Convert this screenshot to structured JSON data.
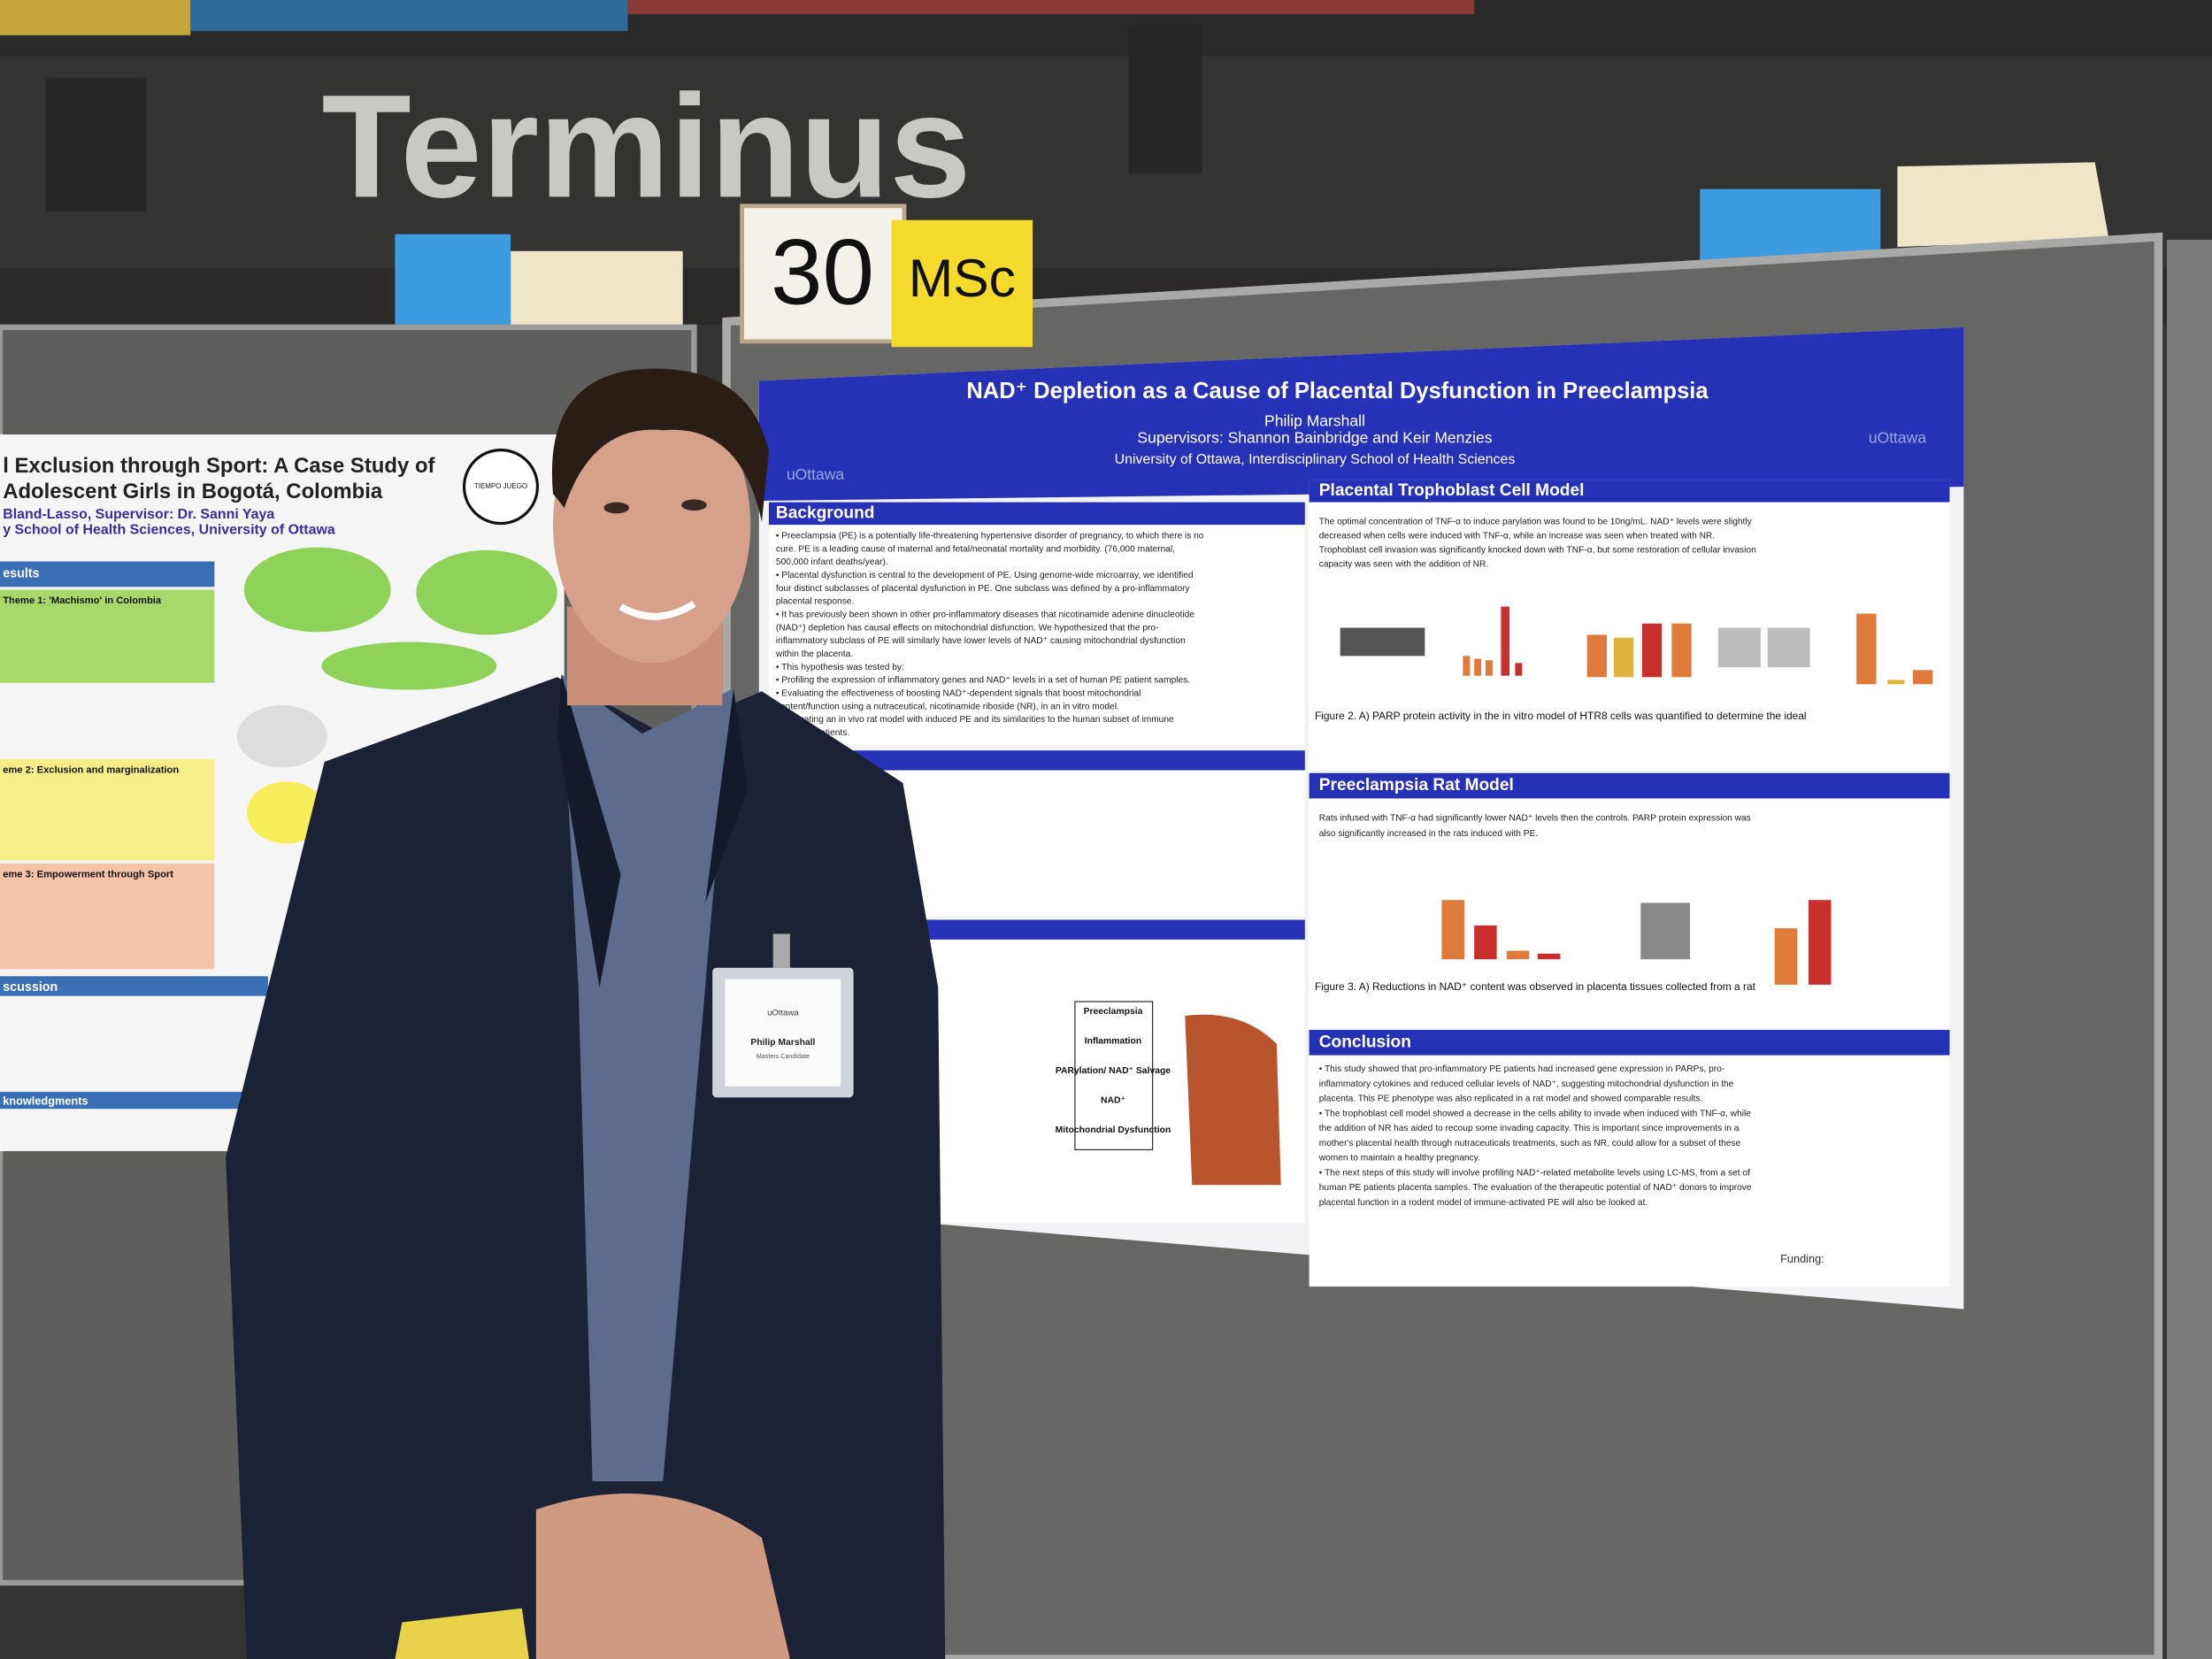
{
  "sign": {
    "venue": "Terminus",
    "number": "30",
    "degree": "MSc"
  },
  "main_poster": {
    "title": "NAD⁺ Depletion as a Cause of Placental Dysfunction in Preeclampsia",
    "author": "Philip Marshall",
    "supervisors": "Supervisors: Shannon Bainbridge and Keir Menzies",
    "affiliation": "University of Ottawa, Interdisciplinary School of Health Sciences",
    "logo": "uOttawa",
    "funding": "Funding:",
    "sections": [
      {
        "heading": "Background",
        "lines": [
          "• Preeclampsia (PE) is a potentially life-threatening hypertensive disorder of pregnancy, to which there is no",
          "  cure. PE is a leading cause of maternal and fetal/neonatal mortality and morbidity. (76,000 maternal,",
          "  500,000 infant deaths/year).",
          "• Placental dysfunction is central to the development of PE. Using genome-wide microarray, we identified",
          "  four distinct subclasses of placental dysfunction in PE. One subclass was defined by a pro-inflammatory",
          "  placental response.",
          "• It has previously been shown in other pro-inflammatory diseases that nicotinamide adenine dinucleotide",
          "  (NAD⁺) depletion has causal effects on mitochondrial disfunction. We hypothesized that the pro-",
          "  inflammatory subclass of PE will similarly have lower levels of NAD⁺ causing mitochondrial dysfunction",
          "  within the placenta.",
          "• This hypothesis was tested by:",
          "   • Profiling the expression of inflammatory genes and NAD⁺ levels in a set of human PE patient samples.",
          "   • Evaluating the effectiveness of boosting NAD⁺-dependent signals that boost mitochondrial",
          "     content/function using a nutraceutical, nicotinamide riboside (NR), in an in vitro model.",
          "   • Evaluating an in vivo rat model with induced PE and its similarities to the human subset of immune",
          "     response patients."
        ]
      },
      {
        "heading": "Placental Trophoblast Cell Model",
        "lines": [
          "The optimal concentration of TNF-α to induce parylation was found to be 10ng/mL. NAD⁺ levels were slightly",
          "decreased when cells were induced with TNF-α, while an increase was seen when treated with NR.",
          "Trophoblast cell invasion was significantly knocked down with TNF-α, but some restoration of cellular invasion",
          "capacity was seen with the addition of NR."
        ]
      },
      {
        "heading": "Preeclampsia Rat Model",
        "lines": [
          "Rats infused with TNF-α had significantly lower NAD⁺ levels then the controls. PARP protein expression was",
          "also significantly increased in the rats induced with PE."
        ]
      },
      {
        "heading": "Conclusion",
        "lines": [
          "• This study showed that pro-inflammatory PE patients had increased gene expression in PARPs, pro-",
          "  inflammatory cytokines and reduced cellular levels of NAD⁺, suggesting mitochondrial dysfunction in the",
          "  placenta. This PE phenotype was also replicated in a rat model and showed comparable results.",
          "• The trophoblast cell model showed a decrease in the cells ability to invade when induced with TNF-α, while",
          "  the addition of NR has aided to recoup some invading capacity. This is important since improvements in a",
          "  mother's placental health through nutraceuticals treatments, such as NR, could allow for a subset of these",
          "  women to maintain a healthy pregnancy.",
          "• The next steps of this study will involve profiling NAD⁺-related metabolite levels using LC-MS, from a set of",
          "  human PE patients placenta samples. The evaluation of the therapeutic potential of NAD⁺ donors to improve",
          "  placental function in a rodent model of immune-activated PE will also be looked at."
        ]
      }
    ],
    "figure_captions": [
      "Figure 2. A) PARP protein activity in the in vitro model of HTR8 cells was quantified to determine the ideal",
      "Figure 3. A) Reductions in NAD⁺ content was observed in placenta tissues collected from a rat"
    ],
    "diagram": [
      "Preeclampsia",
      "Inflammation",
      "PARylation/ NAD⁺ Salvage",
      "NAD⁺",
      "Mitochondrial Dysfunction"
    ]
  },
  "left_poster": {
    "title": [
      "l Exclusion through Sport: A Case Study of",
      "Adolescent Girls in Bogotá, Colombia"
    ],
    "authors": "Bland-Lasso, Supervisor: Dr. Sanni Yaya",
    "affiliation": "y School of Health Sciences, University of Ottawa",
    "logo": "TIEMPO JUEGO",
    "headings": [
      "esults",
      "Theme 1: 'Machismo' in Colombia",
      "eme 2:  Exclusion and marginalization",
      "eme 3:  Empowerment through Sport",
      "scussion",
      "knowledgments"
    ]
  },
  "badge": {
    "institution": "uOttawa",
    "name": "Philip Marshall",
    "role": "Masters Candidate"
  }
}
